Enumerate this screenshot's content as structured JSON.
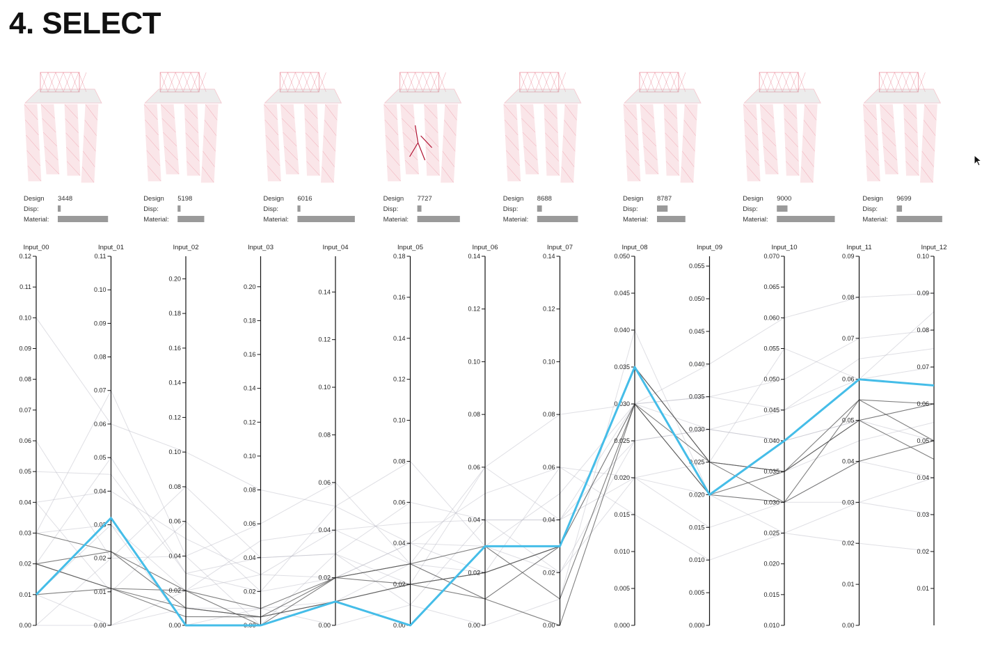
{
  "title": "4. SELECT",
  "design_info_labels": {
    "design": "Design",
    "disp": "Disp:",
    "material": "Material:"
  },
  "designs": [
    {
      "id": "3448",
      "disp": 0.05,
      "material": 0.85
    },
    {
      "id": "5198",
      "disp": 0.05,
      "material": 0.45
    },
    {
      "id": "6016",
      "disp": 0.05,
      "material": 0.97
    },
    {
      "id": "7727",
      "disp": 0.07,
      "material": 0.72
    },
    {
      "id": "8688",
      "disp": 0.08,
      "material": 0.69
    },
    {
      "id": "8787",
      "disp": 0.18,
      "material": 0.48
    },
    {
      "id": "9000",
      "disp": 0.18,
      "material": 0.98
    },
    {
      "id": "9699",
      "disp": 0.09,
      "material": 0.77
    }
  ],
  "colors": {
    "highlight": "#45bde8",
    "bar": "#9a9a9a",
    "design_line": "#e0556a",
    "design_seat": "#c9c9c9",
    "design_hot": "#b01030"
  },
  "chart_data": {
    "type": "parallel-coordinates",
    "axes": [
      {
        "name": "Input_00",
        "range": [
          0,
          0.12
        ],
        "ticks": [
          "0.00",
          "0.01",
          "0.02",
          "0.03",
          "0.04",
          "0.05",
          "0.06",
          "0.07",
          "0.08",
          "0.09",
          "0.10",
          "0.11",
          "0.12"
        ]
      },
      {
        "name": "Input_01",
        "range": [
          0,
          0.11
        ],
        "ticks": [
          "0.00",
          "0.01",
          "0.02",
          "0.03",
          "0.04",
          "0.05",
          "0.06",
          "0.07",
          "0.08",
          "0.09",
          "0.10",
          "0.11"
        ]
      },
      {
        "name": "Input_02",
        "range": [
          0,
          0.213
        ],
        "ticks": [
          "0.00",
          "0.02",
          "0.04",
          "0.06",
          "0.08",
          "0.10",
          "0.12",
          "0.14",
          "0.16",
          "0.18",
          "0.20"
        ]
      },
      {
        "name": "Input_03",
        "range": [
          0,
          0.218
        ],
        "ticks": [
          "0.00",
          "0.02",
          "0.04",
          "0.06",
          "0.08",
          "0.10",
          "0.12",
          "0.14",
          "0.16",
          "0.18",
          "0.20"
        ]
      },
      {
        "name": "Input_04",
        "range": [
          0,
          0.155
        ],
        "ticks": [
          "0.00",
          "0.02",
          "0.04",
          "0.06",
          "0.08",
          "0.10",
          "0.12",
          "0.14"
        ]
      },
      {
        "name": "Input_05",
        "range": [
          0,
          0.18
        ],
        "ticks": [
          "0.00",
          "0.02",
          "0.04",
          "0.06",
          "0.08",
          "0.10",
          "0.12",
          "0.14",
          "0.16",
          "0.18"
        ]
      },
      {
        "name": "Input_06",
        "range": [
          0,
          0.14
        ],
        "ticks": [
          "0.00",
          "0.02",
          "0.04",
          "0.06",
          "0.08",
          "0.10",
          "0.12",
          "0.14"
        ]
      },
      {
        "name": "Input_07",
        "range": [
          0,
          0.14
        ],
        "ticks": [
          "0.00",
          "0.02",
          "0.04",
          "0.06",
          "0.08",
          "0.10",
          "0.12",
          "0.14"
        ]
      },
      {
        "name": "Input_08",
        "range": [
          0,
          0.05
        ],
        "ticks": [
          "0.000",
          "0.005",
          "0.010",
          "0.015",
          "0.020",
          "0.025",
          "0.030",
          "0.035",
          "0.040",
          "0.045",
          "0.050"
        ]
      },
      {
        "name": "Input_09",
        "range": [
          0,
          0.0565
        ],
        "ticks": [
          "0.000",
          "0.005",
          "0.010",
          "0.015",
          "0.020",
          "0.025",
          "0.030",
          "0.035",
          "0.040",
          "0.045",
          "0.050",
          "0.055"
        ]
      },
      {
        "name": "Input_10",
        "range": [
          0.01,
          0.07
        ],
        "ticks": [
          "0.010",
          "0.015",
          "0.020",
          "0.025",
          "0.030",
          "0.035",
          "0.040",
          "0.045",
          "0.050",
          "0.055",
          "0.060",
          "0.065",
          "0.070"
        ]
      },
      {
        "name": "Input_11",
        "range": [
          0,
          0.09
        ],
        "ticks": [
          "0.00",
          "0.01",
          "0.02",
          "0.03",
          "0.04",
          "0.05",
          "0.06",
          "0.07",
          "0.08",
          "0.09"
        ]
      },
      {
        "name": "Input_12",
        "range": [
          0,
          0.1
        ],
        "ticks": [
          "0.01",
          "0.02",
          "0.03",
          "0.04",
          "0.05",
          "0.06",
          "0.07",
          "0.08",
          "0.09",
          "0.10"
        ]
      }
    ],
    "highlight": [
      0.01,
      0.032,
      0.0,
      0.0,
      0.01,
      0.0,
      0.03,
      0.03,
      0.035,
      0.02,
      0.04,
      0.06,
      0.065
    ],
    "series_dark": [
      [
        0.02,
        0.022,
        0.01,
        0.005,
        0.02,
        0.02,
        0.02,
        0.03,
        0.03,
        0.025,
        0.035,
        0.055,
        0.06
      ],
      [
        0.02,
        0.011,
        0.02,
        0.0,
        0.02,
        0.03,
        0.01,
        0.0,
        0.03,
        0.02,
        0.03,
        0.055,
        0.05
      ],
      [
        0.01,
        0.011,
        0.005,
        0.005,
        0.01,
        0.02,
        0.02,
        0.03,
        0.035,
        0.025,
        0.035,
        0.05,
        0.045
      ],
      [
        0.03,
        0.022,
        0.02,
        0.01,
        0.02,
        0.03,
        0.03,
        0.01,
        0.03,
        0.02,
        0.035,
        0.05,
        0.06
      ],
      [
        0.02,
        0.011,
        0.01,
        0.005,
        0.01,
        0.02,
        0.01,
        0.03,
        0.035,
        0.025,
        0.03,
        0.04,
        0.05
      ]
    ],
    "series_light": [
      [
        0.05,
        0.045,
        0.03,
        0.04,
        0.03,
        0.06,
        0.04,
        0.04,
        0.025,
        0.03,
        0.045,
        0.065,
        0.075
      ],
      [
        0.04,
        0.01,
        0.06,
        0.02,
        0.02,
        0.04,
        0.02,
        0.06,
        0.02,
        0.015,
        0.03,
        0.04,
        0.04
      ],
      [
        0.03,
        0.07,
        0.04,
        0.06,
        0.06,
        0.03,
        0.06,
        0.08,
        0.03,
        0.035,
        0.05,
        0.07,
        0.08
      ],
      [
        0.0,
        0.0,
        0.01,
        0.01,
        0.0,
        0.01,
        0.0,
        0.01,
        0.04,
        0.02,
        0.025,
        0.03,
        0.03
      ],
      [
        0.01,
        0.03,
        0.02,
        0.03,
        0.04,
        0.05,
        0.04,
        0.02,
        0.025,
        0.03,
        0.04,
        0.05,
        0.06
      ],
      [
        0.06,
        0.02,
        0.08,
        0.04,
        0.03,
        0.02,
        0.06,
        0.04,
        0.02,
        0.025,
        0.055,
        0.06,
        0.085
      ],
      [
        0.02,
        0.05,
        0.03,
        0.02,
        0.05,
        0.08,
        0.03,
        0.05,
        0.03,
        0.04,
        0.06,
        0.08,
        0.09
      ],
      [
        0.03,
        0.03,
        0.0,
        0.01,
        0.01,
        0.03,
        0.02,
        0.03,
        0.035,
        0.025,
        0.035,
        0.045,
        0.055
      ],
      [
        0.1,
        0.06,
        0.1,
        0.08,
        0.05,
        0.04,
        0.05,
        0.06,
        0.015,
        0.01,
        0.025,
        0.02,
        0.02
      ],
      [
        0.0,
        0.02,
        0.04,
        0.0,
        0.03,
        0.01,
        0.04,
        0.04,
        0.03,
        0.035,
        0.045,
        0.06,
        0.07
      ],
      [
        0.04,
        0.04,
        0.05,
        0.03,
        0.02,
        0.04,
        0.03,
        0.02,
        0.02,
        0.02,
        0.03,
        0.03,
        0.04
      ],
      [
        0.01,
        0.0,
        0.02,
        0.05,
        0.04,
        0.03,
        0.01,
        0.03,
        0.03,
        0.03,
        0.04,
        0.05,
        0.05
      ]
    ]
  }
}
